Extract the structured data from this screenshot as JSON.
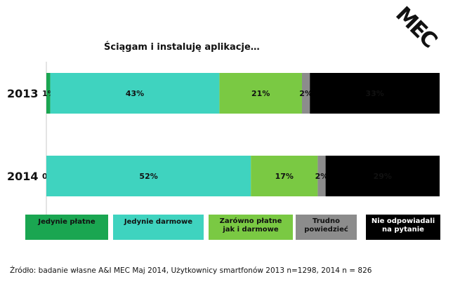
{
  "logo_text": "MEC",
  "chart_data": {
    "type": "bar",
    "orientation": "horizontal",
    "stacked": true,
    "percent_stacked": true,
    "title": "Ściągam i instaluję aplikacje…",
    "categories": [
      "2013",
      "2014"
    ],
    "series": [
      {
        "name": "Jedynie płatne",
        "values": [
          1,
          0
        ],
        "labels": [
          "1%",
          "0%"
        ],
        "color": "#1aa651"
      },
      {
        "name": "Jedynie darmowe",
        "values": [
          43,
          52
        ],
        "labels": [
          "43%",
          "52%"
        ],
        "color": "#3fd3bf"
      },
      {
        "name": "Zarówno płatne jak i darmowe",
        "values": [
          21,
          17
        ],
        "labels": [
          "21%",
          "17%"
        ],
        "color": "#7ac943"
      },
      {
        "name": "Trudno powiedzieć",
        "values": [
          2,
          2
        ],
        "labels": [
          "2%",
          "2%"
        ],
        "color": "#8c8c8c"
      },
      {
        "name": "Nie odpowiadali na pytanie",
        "values": [
          33,
          29
        ],
        "labels": [
          "33%",
          "29%"
        ],
        "color": "#000000"
      }
    ],
    "legend": {
      "position": "bottom",
      "items": [
        {
          "lines": [
            "Jedynie płatne"
          ],
          "color": "#1aa651",
          "text_color": "#111111"
        },
        {
          "lines": [
            "Jedynie darmowe"
          ],
          "color": "#3fd3bf",
          "text_color": "#111111"
        },
        {
          "lines": [
            "Zarówno płatne",
            "jak i darmowe"
          ],
          "color": "#7ac943",
          "text_color": "#111111"
        },
        {
          "lines": [
            "Trudno",
            "powiedzieć"
          ],
          "color": "#8c8c8c",
          "text_color": "#111111"
        },
        {
          "lines": [
            "Nie odpowiadali",
            "na pytanie"
          ],
          "color": "#000000",
          "text_color": "#ffffff"
        }
      ]
    },
    "source": "Źródło: badanie własne A&I MEC Maj 2014, Użytkownicy smartfonów  2013 n=1298, 2014 n = 826"
  }
}
